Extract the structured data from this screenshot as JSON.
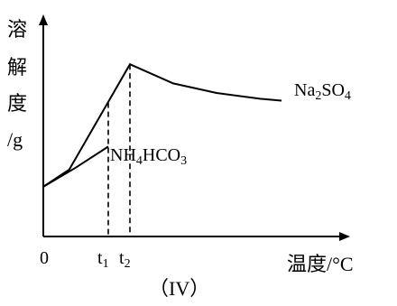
{
  "caption": "（IV）",
  "chart_data": {
    "type": "line",
    "ylabel": "溶解度/g",
    "ylabel_chars": [
      "溶",
      "解",
      "度",
      "/g"
    ],
    "xlabel": "温度/°C",
    "origin_label": "0",
    "x_ticks": [
      {
        "label": "t",
        "sub": "1",
        "x": 0.3
      },
      {
        "label": "t",
        "sub": "2",
        "x": 0.4
      }
    ],
    "grid": false,
    "legend": "none (series labeled directly on curves)",
    "xlim": [
      0,
      1.3
    ],
    "ylim": [
      0,
      1.0
    ],
    "series": [
      {
        "name": "Na2SO4",
        "label_parts": [
          {
            "text": "Na",
            "sub": false
          },
          {
            "text": "2",
            "sub": true
          },
          {
            "text": "SO",
            "sub": false
          },
          {
            "text": "4",
            "sub": true
          }
        ],
        "color": "#000000",
        "points": [
          {
            "x": 0.0,
            "y": 0.26
          },
          {
            "x": 0.12,
            "y": 0.35
          },
          {
            "x": 0.4,
            "y": 0.9
          },
          {
            "x": 0.6,
            "y": 0.8
          },
          {
            "x": 0.8,
            "y": 0.75
          },
          {
            "x": 1.0,
            "y": 0.72
          },
          {
            "x": 1.1,
            "y": 0.71
          }
        ]
      },
      {
        "name": "NH4HCO3",
        "label_parts": [
          {
            "text": "NH",
            "sub": false
          },
          {
            "text": "4",
            "sub": true
          },
          {
            "text": "HCO",
            "sub": false
          },
          {
            "text": "3",
            "sub": true
          }
        ],
        "color": "#000000",
        "points": [
          {
            "x": 0.0,
            "y": 0.26
          },
          {
            "x": 0.15,
            "y": 0.36
          },
          {
            "x": 0.3,
            "y": 0.47
          }
        ]
      }
    ],
    "dashed_guides": [
      {
        "x": 0.3,
        "y": 0.7
      },
      {
        "x": 0.4,
        "y": 0.9
      }
    ]
  }
}
